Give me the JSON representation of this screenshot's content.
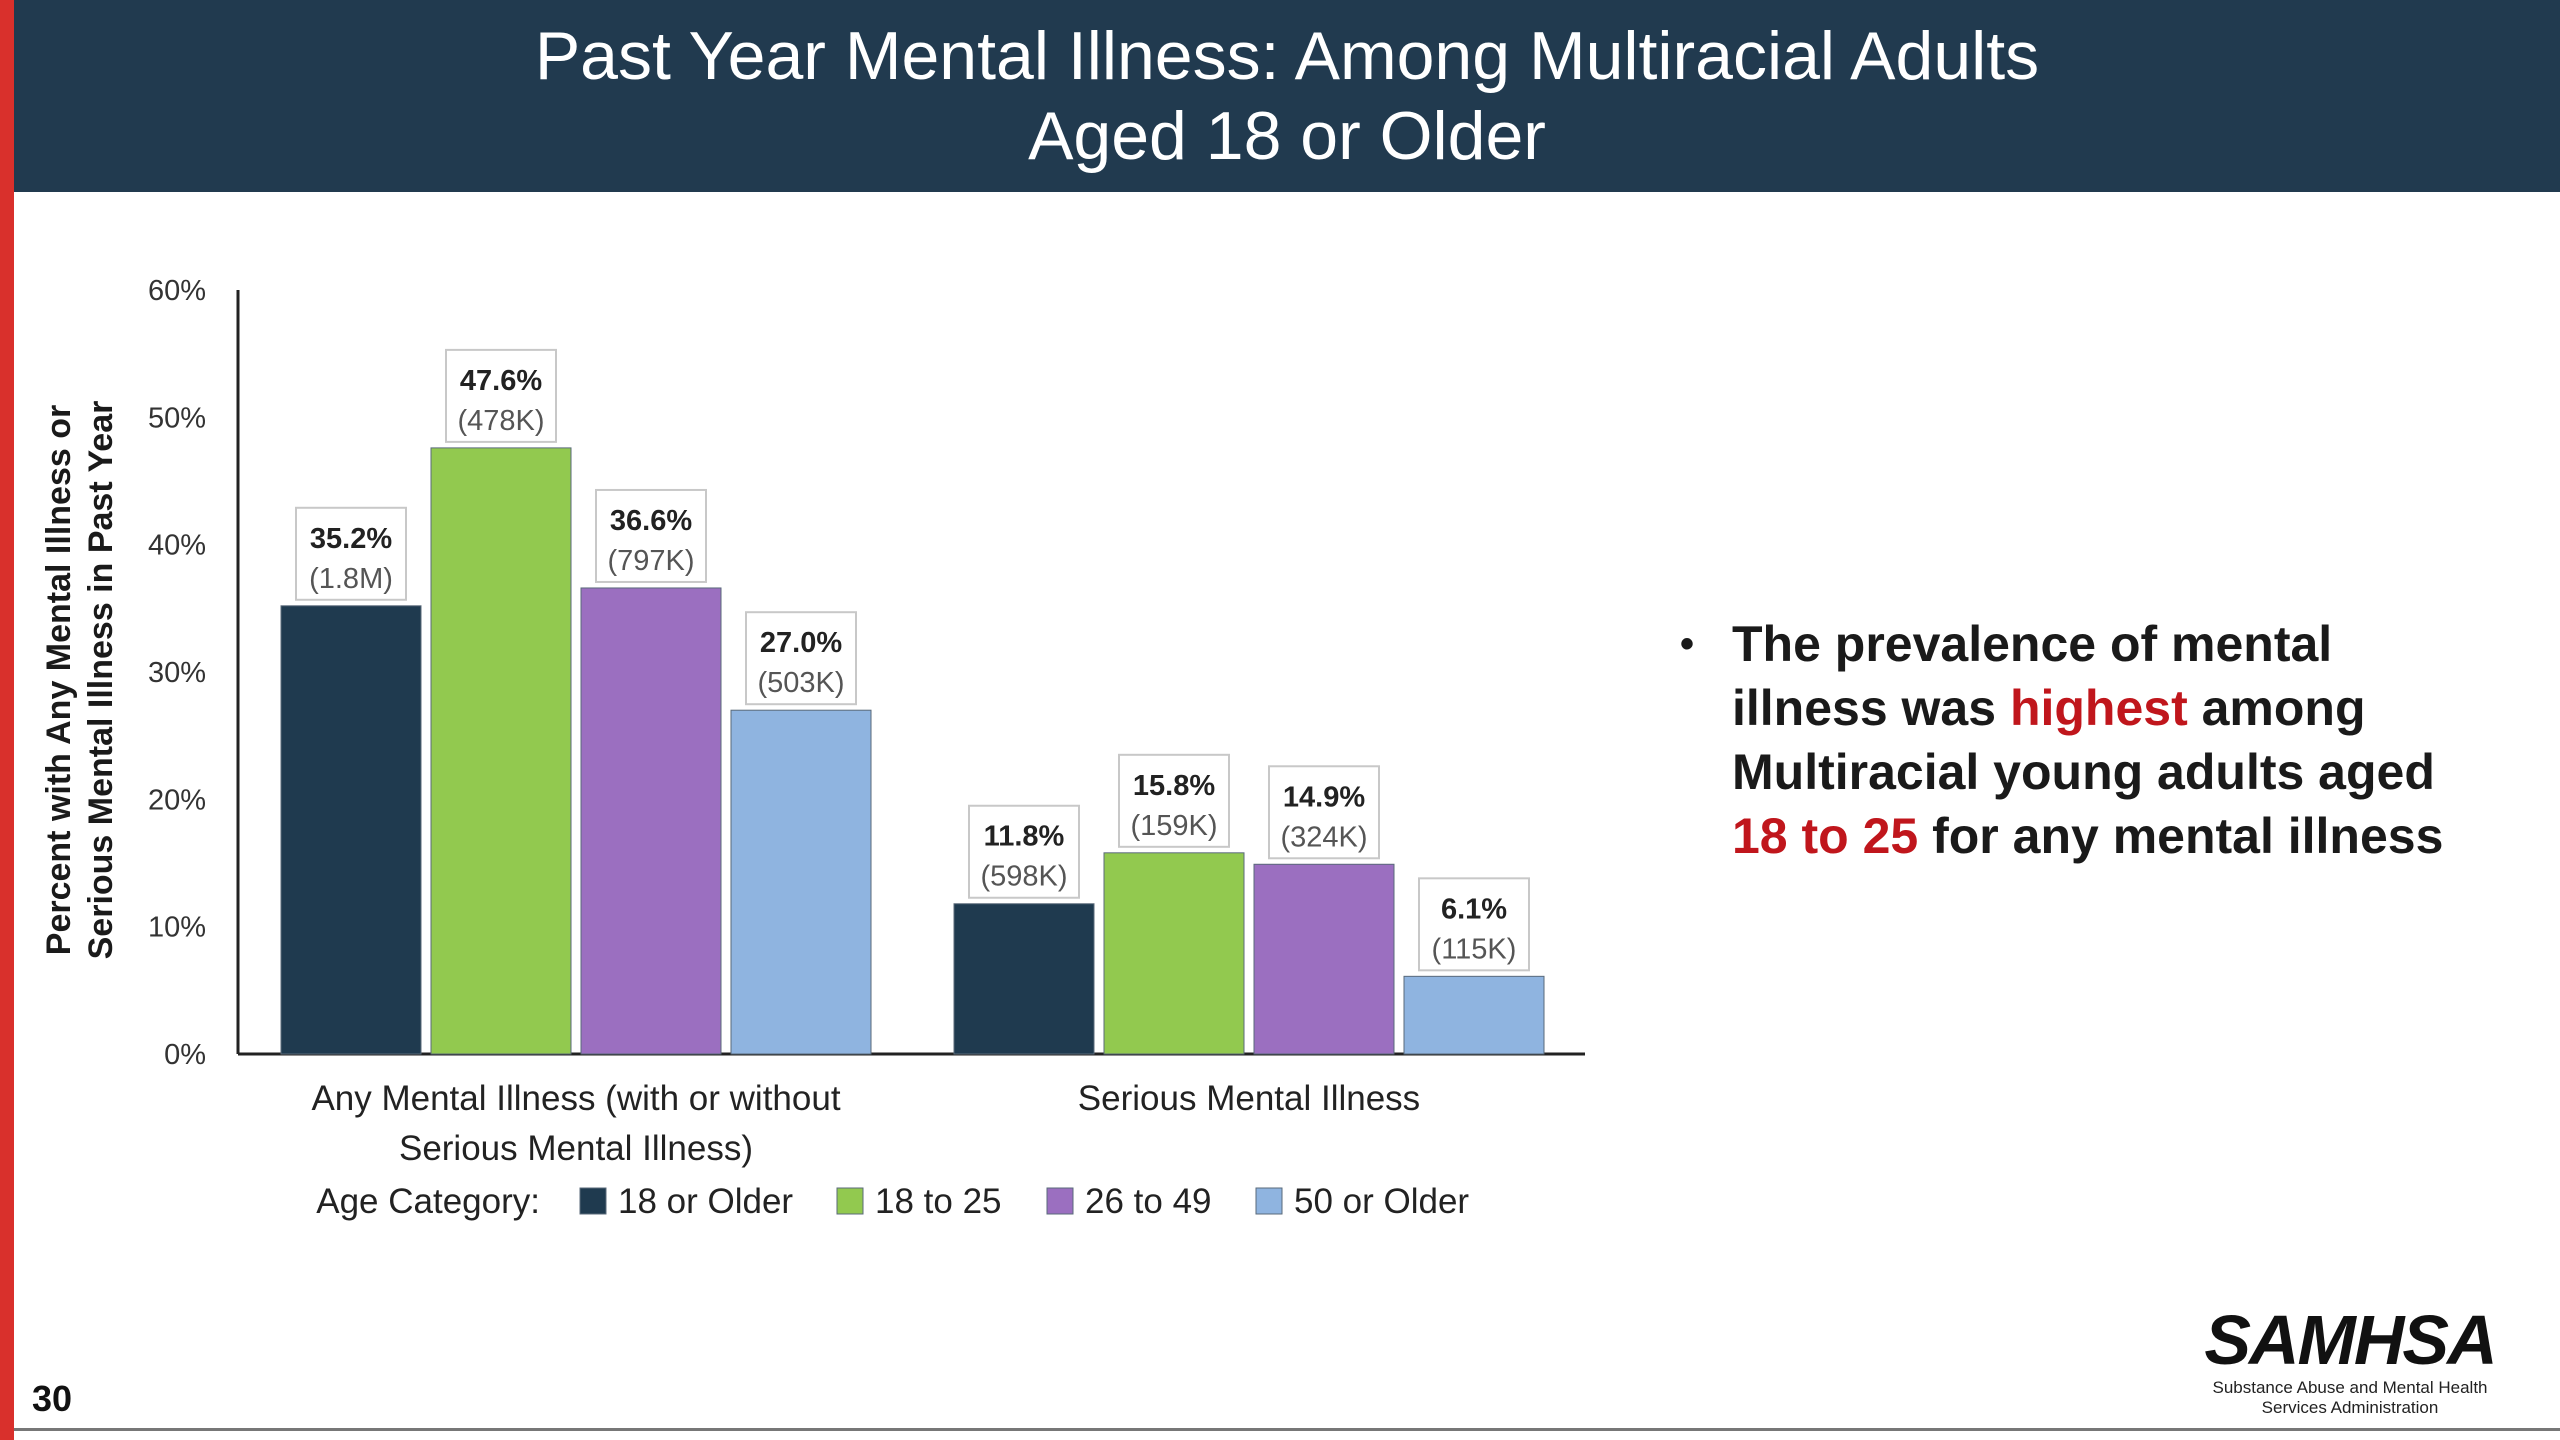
{
  "header": {
    "title_line1": "Past Year Mental Illness: Among Multiracial Adults",
    "title_line2": "Aged 18 or Older"
  },
  "chart_data": {
    "type": "bar",
    "ylabel_line1": "Percent with Any Mental Illness or",
    "ylabel_line2": "Serious Mental Illness in Past Year",
    "ylim": [
      0,
      60
    ],
    "yticks": [
      "0%",
      "10%",
      "20%",
      "30%",
      "40%",
      "50%",
      "60%"
    ],
    "grid": false,
    "categories": [
      [
        "Any Mental Illness (with or without",
        "Serious Mental Illness)"
      ],
      [
        "Serious Mental Illness"
      ]
    ],
    "legend_title": "Age Category:",
    "legend_position": "bottom",
    "series": [
      {
        "name": "18 or Older",
        "color": "#1f3a4f",
        "values": [
          35.2,
          11.8
        ],
        "counts": [
          "(1.8M)",
          "(598K)"
        ]
      },
      {
        "name": "18 to 25",
        "color": "#92c94f",
        "values": [
          47.6,
          15.8
        ],
        "counts": [
          "(478K)",
          "(159K)"
        ]
      },
      {
        "name": "26 to 49",
        "color": "#9b6fc0",
        "values": [
          36.6,
          14.9
        ],
        "counts": [
          "(797K)",
          "(324K)"
        ]
      },
      {
        "name": "50 or Older",
        "color": "#8fb4e0",
        "values": [
          27.0,
          6.1
        ],
        "counts": [
          "(503K)",
          "(115K)"
        ]
      }
    ]
  },
  "bullet": {
    "part1": "The prevalence of mental illness was ",
    "highlight1": "highest",
    "part2": " among Multiracial young adults aged ",
    "highlight2": "18 to 25",
    "part3": " for any mental illness"
  },
  "page_number": "30",
  "logo": {
    "mark": "SAMHSA",
    "sub_line1": "Substance Abuse and Mental Health",
    "sub_line2": "Services Administration"
  }
}
